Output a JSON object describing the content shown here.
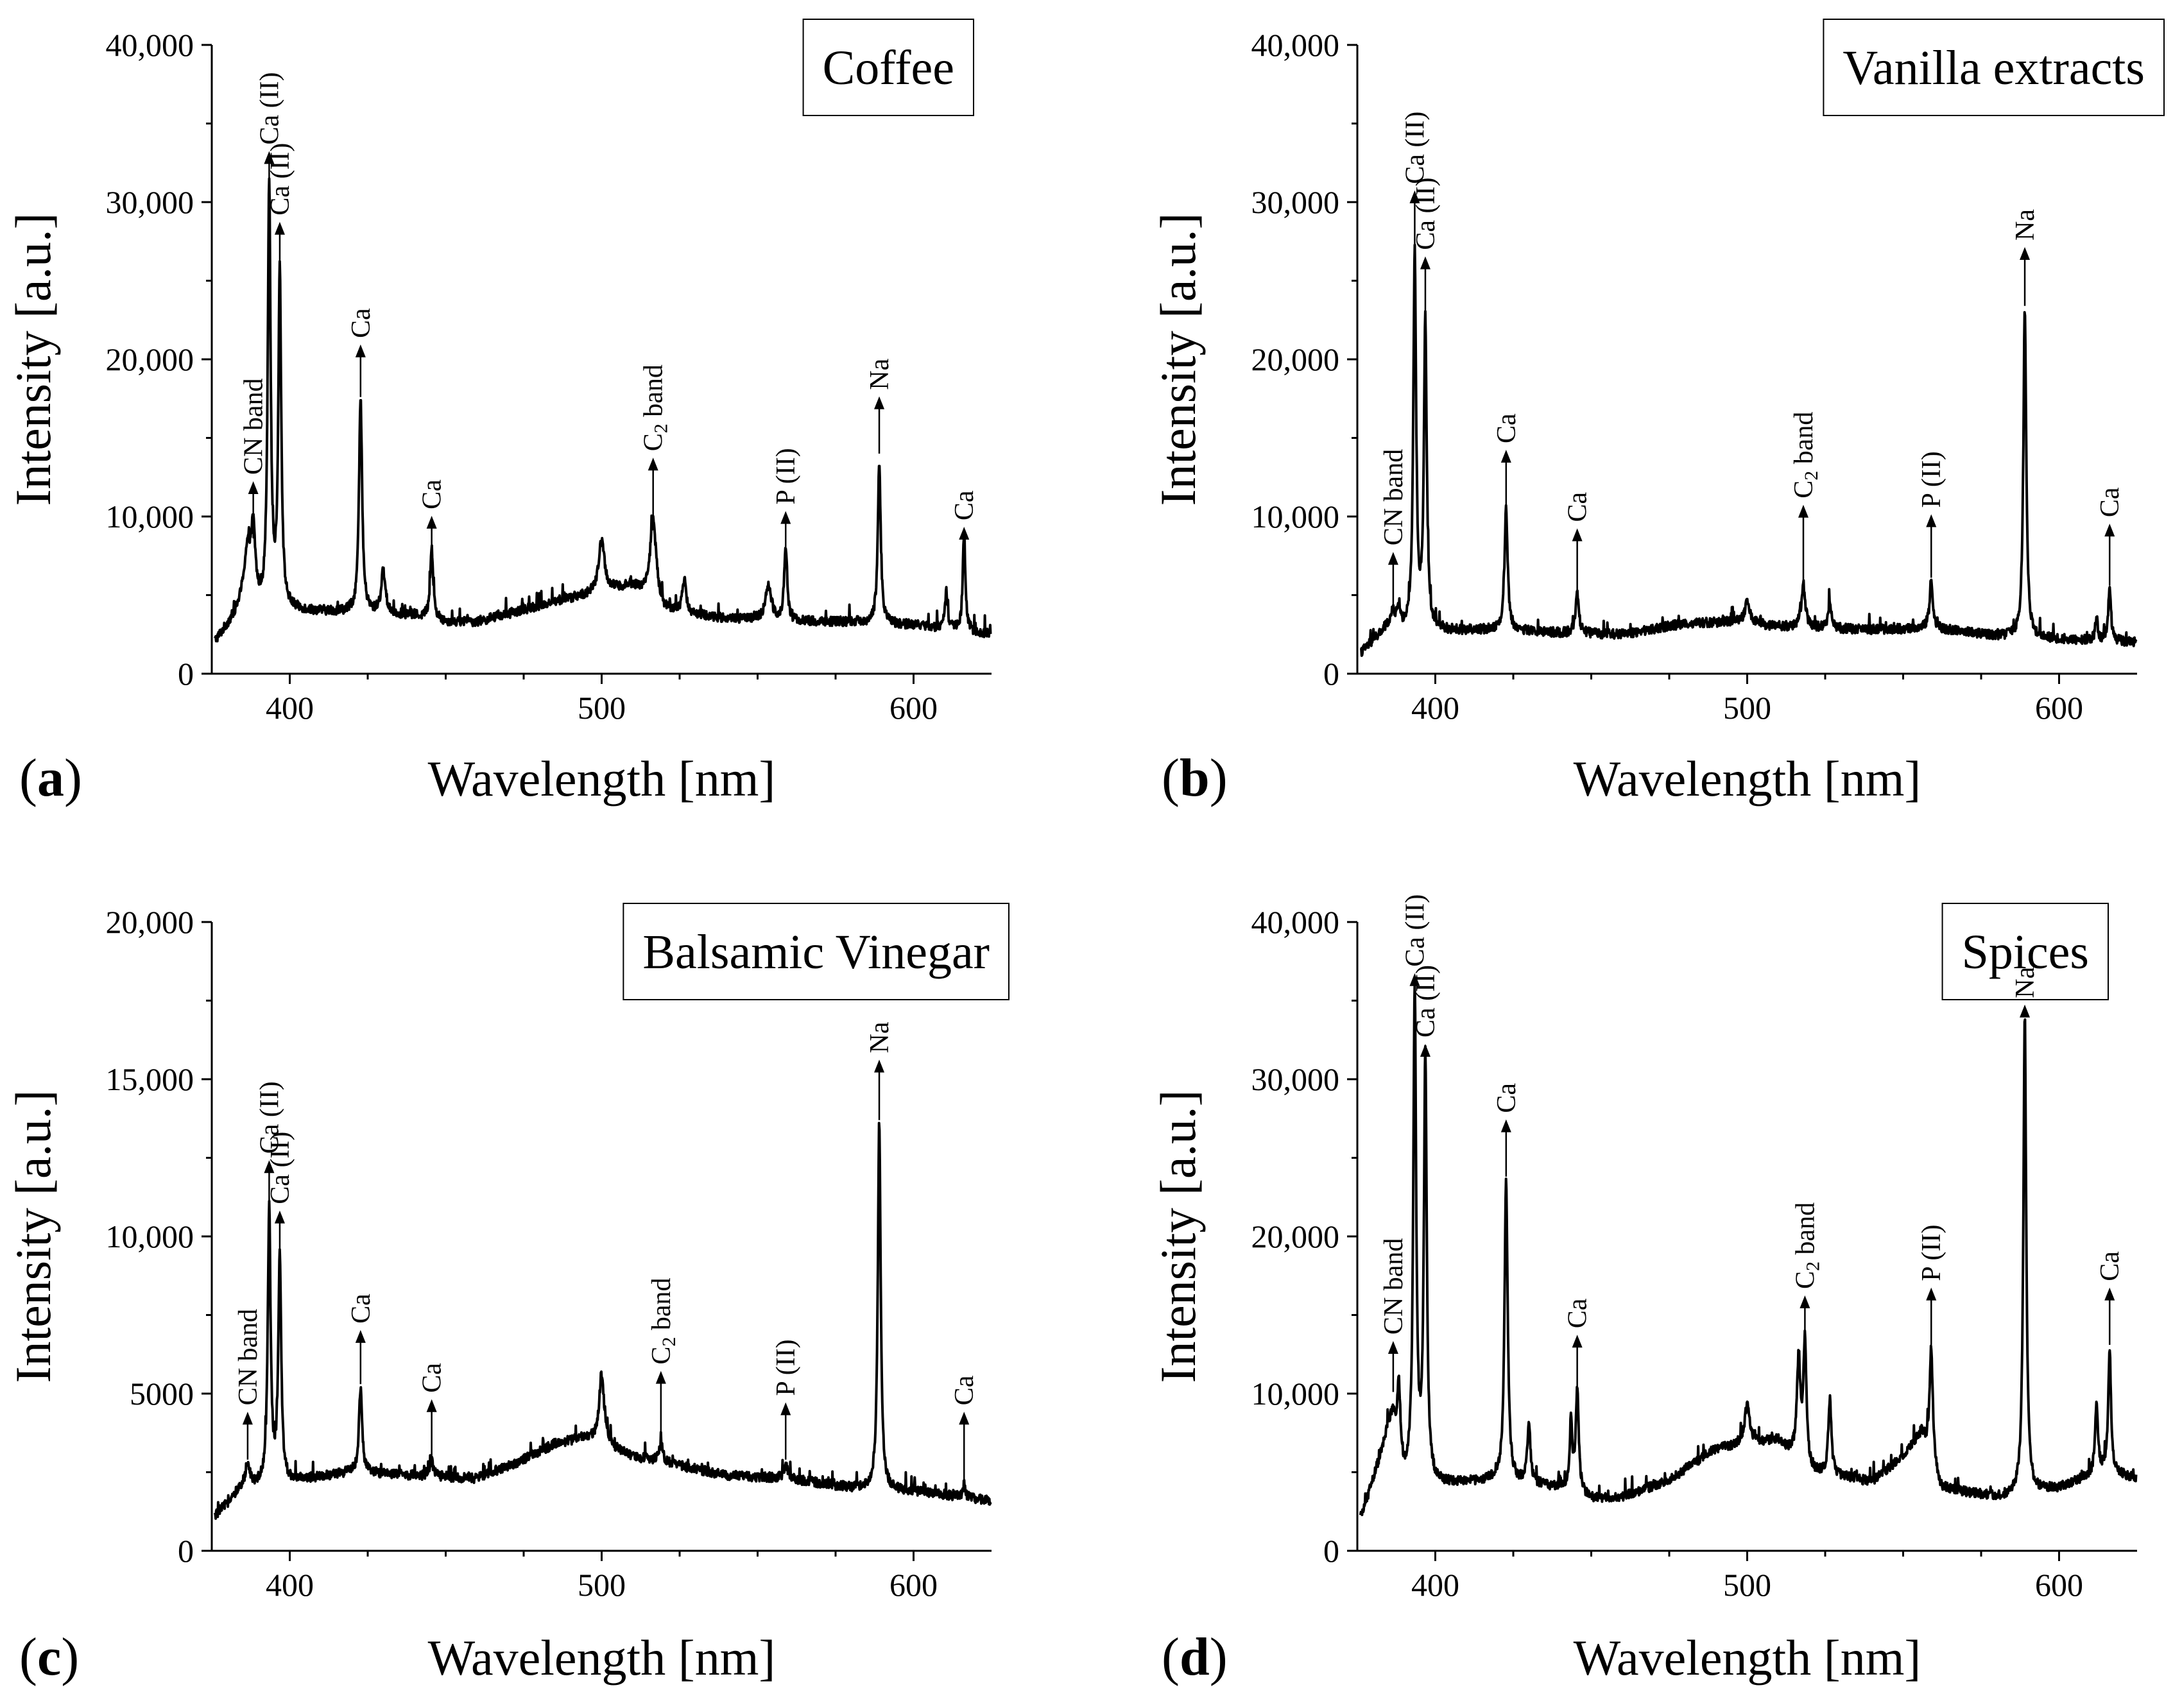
{
  "figure": {
    "panel_letters": [
      "(a)",
      "(b)",
      "(c)",
      "(d)"
    ]
  },
  "chart_data": [
    {
      "type": "line",
      "panel_label": "(a)",
      "sample_label": "Coffee",
      "xlabel": "Wavelength [nm]",
      "ylabel": "Intensity [a.u.]",
      "xlim": [
        375,
        625
      ],
      "ylim": [
        0,
        40000
      ],
      "xticks": [
        400,
        500,
        600
      ],
      "yticks": [
        0,
        10000,
        20000,
        30000,
        40000
      ],
      "ytick_labels": [
        "0",
        "10,000",
        "20,000",
        "30,000",
        "40,000"
      ],
      "baseline": [
        [
          376,
          2000
        ],
        [
          385,
          4200
        ],
        [
          392,
          3800
        ],
        [
          400,
          4000
        ],
        [
          420,
          3900
        ],
        [
          440,
          3700
        ],
        [
          450,
          3300
        ],
        [
          460,
          3300
        ],
        [
          470,
          3800
        ],
        [
          485,
          4600
        ],
        [
          495,
          5000
        ],
        [
          510,
          5600
        ],
        [
          520,
          4000
        ],
        [
          540,
          3500
        ],
        [
          560,
          3300
        ],
        [
          580,
          3300
        ],
        [
          600,
          3100
        ],
        [
          625,
          2500
        ]
      ],
      "peaks": [
        [
          386.5,
          7600,
          1.4
        ],
        [
          388.3,
          8300,
          0.8
        ],
        [
          393.4,
          31000,
          0.55
        ],
        [
          396.8,
          25500,
          0.55
        ],
        [
          422.7,
          17400,
          0.6
        ],
        [
          430,
          6500,
          0.8
        ],
        [
          445.5,
          7900,
          0.6
        ],
        [
          500,
          8500,
          1.1
        ],
        [
          516.5,
          9800,
          1.2
        ],
        [
          526.5,
          6000,
          0.7
        ],
        [
          553.5,
          5500,
          1.2
        ],
        [
          559,
          7800,
          0.6
        ],
        [
          589,
          13600,
          0.55
        ],
        [
          610.5,
          5200,
          0.5
        ],
        [
          616.2,
          8900,
          0.5
        ]
      ],
      "annotations": [
        {
          "text": "CN band",
          "x": 388.3,
          "y_tip": 12000,
          "y_base": 8600
        },
        {
          "text": "Ca (II)",
          "x": 393.4,
          "y_tip": 33000,
          "y_base": 30000
        },
        {
          "text": "Ca (II)",
          "x": 396.8,
          "y_tip": 28500,
          "y_base": 25500
        },
        {
          "text": "Ca",
          "x": 422.7,
          "y_tip": 20700,
          "y_base": 17600
        },
        {
          "text": "Ca",
          "x": 445.5,
          "y_tip": 9800,
          "y_base": 7900
        },
        {
          "text": "C",
          "sub": "2",
          "suffix": " band",
          "x": 516.5,
          "y_tip": 13500,
          "y_base": 10000
        },
        {
          "text": "P (II)",
          "x": 559,
          "y_tip": 10100,
          "y_base": 7800
        },
        {
          "text": "Na",
          "x": 589,
          "y_tip": 17400,
          "y_base": 14000
        },
        {
          "text": "Ca",
          "x": 616.2,
          "y_tip": 9100,
          "y_base": 8900
        }
      ]
    },
    {
      "type": "line",
      "panel_label": "(b)",
      "sample_label": "Vanilla extracts",
      "xlabel": "Wavelength [nm]",
      "ylabel": "Intensity [a.u.]",
      "xlim": [
        375,
        625
      ],
      "ylim": [
        0,
        40000
      ],
      "xticks": [
        400,
        500,
        600
      ],
      "yticks": [
        0,
        10000,
        20000,
        30000,
        40000
      ],
      "ytick_labels": [
        "0",
        "10,000",
        "20,000",
        "30,000",
        "40,000"
      ],
      "baseline": [
        [
          376,
          1300
        ],
        [
          385,
          3000
        ],
        [
          392,
          2600
        ],
        [
          400,
          2700
        ],
        [
          420,
          2800
        ],
        [
          440,
          2600
        ],
        [
          460,
          2500
        ],
        [
          480,
          3200
        ],
        [
          495,
          3300
        ],
        [
          510,
          3000
        ],
        [
          520,
          2900
        ],
        [
          540,
          2800
        ],
        [
          560,
          2900
        ],
        [
          580,
          2400
        ],
        [
          600,
          2200
        ],
        [
          625,
          2000
        ]
      ],
      "peaks": [
        [
          386.5,
          3800,
          0.8
        ],
        [
          388.3,
          4100,
          0.6
        ],
        [
          393.4,
          26500,
          0.55
        ],
        [
          396.8,
          22200,
          0.55
        ],
        [
          422.7,
          10500,
          0.6
        ],
        [
          445.5,
          5100,
          0.6
        ],
        [
          500,
          4500,
          1.0
        ],
        [
          518,
          5600,
          0.8
        ],
        [
          526.5,
          4600,
          0.6
        ],
        [
          559,
          6000,
          0.6
        ],
        [
          589,
          23300,
          0.55
        ],
        [
          612,
          3500,
          0.5
        ],
        [
          616.2,
          5500,
          0.5
        ]
      ],
      "annotations": [
        {
          "text": "CN band",
          "x": 386.5,
          "y_tip": 7500,
          "y_base": 4200
        },
        {
          "text": "Ca (II)",
          "x": 393.4,
          "y_tip": 30500,
          "y_base": 26500
        },
        {
          "text": "Ca (II)",
          "x": 396.8,
          "y_tip": 26300,
          "y_base": 22300
        },
        {
          "text": "Ca",
          "x": 422.7,
          "y_tip": 14000,
          "y_base": 10500
        },
        {
          "text": "Ca",
          "x": 445.5,
          "y_tip": 9000,
          "y_base": 5200
        },
        {
          "text": "C",
          "sub": "2",
          "suffix": " band",
          "x": 518,
          "y_tip": 10500,
          "y_base": 5700
        },
        {
          "text": "P (II)",
          "x": 559,
          "y_tip": 9900,
          "y_base": 6100
        },
        {
          "text": "Na",
          "x": 589,
          "y_tip": 26900,
          "y_base": 23400
        },
        {
          "text": "Ca",
          "x": 616.2,
          "y_tip": 9300,
          "y_base": 5600
        }
      ]
    },
    {
      "type": "line",
      "panel_label": "(c)",
      "sample_label": "Balsamic Vinegar",
      "xlabel": "Wavelength [nm]",
      "ylabel": "Intensity [a.u.]",
      "xlim": [
        375,
        625
      ],
      "ylim": [
        0,
        20000
      ],
      "xticks": [
        400,
        500,
        600
      ],
      "yticks": [
        0,
        5000,
        10000,
        15000,
        20000
      ],
      "ytick_labels": [
        "0",
        "5000",
        "10,000",
        "15,000",
        "20,000"
      ],
      "baseline": [
        [
          376,
          1100
        ],
        [
          385,
          2000
        ],
        [
          392,
          2100
        ],
        [
          400,
          2200
        ],
        [
          420,
          2500
        ],
        [
          440,
          2400
        ],
        [
          460,
          2300
        ],
        [
          475,
          2900
        ],
        [
          485,
          3400
        ],
        [
          495,
          3600
        ],
        [
          510,
          3000
        ],
        [
          520,
          2800
        ],
        [
          540,
          2400
        ],
        [
          560,
          2300
        ],
        [
          580,
          2000
        ],
        [
          600,
          1900
        ],
        [
          625,
          1600
        ]
      ],
      "peaks": [
        [
          386.5,
          2800,
          0.8
        ],
        [
          393.4,
          10800,
          0.55
        ],
        [
          396.8,
          9400,
          0.55
        ],
        [
          422.7,
          5200,
          0.6
        ],
        [
          445.5,
          2900,
          0.6
        ],
        [
          500,
          5600,
          1.0
        ],
        [
          519,
          3400,
          0.8
        ],
        [
          559,
          2800,
          0.6
        ],
        [
          589,
          13600,
          0.55
        ],
        [
          616.2,
          2100,
          0.5
        ]
      ],
      "annotations": [
        {
          "text": "CN band",
          "x": 386.5,
          "y_tip": 4300,
          "y_base": 2900
        },
        {
          "text": "Ca (II)",
          "x": 393.4,
          "y_tip": 12300,
          "y_base": 10900
        },
        {
          "text": "Ca (II)",
          "x": 396.8,
          "y_tip": 10700,
          "y_base": 9500
        },
        {
          "text": "Ca",
          "x": 422.7,
          "y_tip": 6900,
          "y_base": 5300
        },
        {
          "text": "Ca",
          "x": 445.5,
          "y_tip": 4700,
          "y_base": 3000
        },
        {
          "text": "C",
          "sub": "2",
          "suffix": " band",
          "x": 519,
          "y_tip": 5600,
          "y_base": 3500
        },
        {
          "text": "P (II)",
          "x": 559,
          "y_tip": 4600,
          "y_base": 2900
        },
        {
          "text": "Na",
          "x": 589,
          "y_tip": 15500,
          "y_base": 13700
        },
        {
          "text": "Ca",
          "x": 616.2,
          "y_tip": 4300,
          "y_base": 2200
        }
      ]
    },
    {
      "type": "line",
      "panel_label": "(d)",
      "sample_label": "Spices",
      "xlabel": "Wavelength [nm]",
      "ylabel": "Intensity [a.u.]",
      "xlim": [
        375,
        625
      ],
      "ylim": [
        0,
        40000
      ],
      "xticks": [
        400,
        500,
        600
      ],
      "yticks": [
        0,
        10000,
        20000,
        30000,
        40000
      ],
      "ytick_labels": [
        "0",
        "10,000",
        "20,000",
        "30,000",
        "40,000"
      ],
      "baseline": [
        [
          376,
          2000
        ],
        [
          385,
          7500
        ],
        [
          390,
          4500
        ],
        [
          400,
          4200
        ],
        [
          420,
          4500
        ],
        [
          440,
          4000
        ],
        [
          450,
          3300
        ],
        [
          460,
          3400
        ],
        [
          475,
          4500
        ],
        [
          490,
          6500
        ],
        [
          500,
          6800
        ],
        [
          510,
          7000
        ],
        [
          520,
          5000
        ],
        [
          540,
          4400
        ],
        [
          550,
          6000
        ],
        [
          556,
          7500
        ],
        [
          562,
          4000
        ],
        [
          580,
          3400
        ],
        [
          600,
          4000
        ],
        [
          615,
          5200
        ],
        [
          625,
          4500
        ]
      ],
      "peaks": [
        [
          386.5,
          8500,
          1.0
        ],
        [
          388.3,
          10000,
          0.6
        ],
        [
          393.4,
          35500,
          0.55
        ],
        [
          396.8,
          31200,
          0.55
        ],
        [
          422.7,
          23700,
          0.6
        ],
        [
          430,
          8000,
          0.6
        ],
        [
          443.5,
          8000,
          0.5
        ],
        [
          445.5,
          10000,
          0.6
        ],
        [
          500,
          9300,
          1.0
        ],
        [
          516.5,
          12000,
          0.7
        ],
        [
          518.5,
          13000,
          0.6
        ],
        [
          526.5,
          9500,
          0.6
        ],
        [
          559,
          13000,
          0.6
        ],
        [
          589,
          34000,
          0.55
        ],
        [
          612,
          9500,
          0.5
        ],
        [
          616.2,
          13000,
          0.5
        ]
      ],
      "annotations": [
        {
          "text": "CN band",
          "x": 386.5,
          "y_tip": 13100,
          "y_base": 10100
        },
        {
          "text": "Ca (II)",
          "x": 393.4,
          "y_tip": 36500,
          "y_base": 35600
        },
        {
          "text": "Ca (II)",
          "x": 396.8,
          "y_tip": 32000,
          "y_base": 31300
        },
        {
          "text": "Ca",
          "x": 422.7,
          "y_tip": 27200,
          "y_base": 23800
        },
        {
          "text": "Ca",
          "x": 445.5,
          "y_tip": 13500,
          "y_base": 10100
        },
        {
          "text": "C",
          "sub": "2",
          "suffix": " band",
          "x": 518.5,
          "y_tip": 16000,
          "y_base": 13100
        },
        {
          "text": "P (II)",
          "x": 559,
          "y_tip": 16500,
          "y_base": 13100
        },
        {
          "text": "Na",
          "x": 589,
          "y_tip": 34500,
          "y_base": 34100
        },
        {
          "text": "Ca",
          "x": 616.2,
          "y_tip": 16500,
          "y_base": 13100
        }
      ]
    }
  ]
}
